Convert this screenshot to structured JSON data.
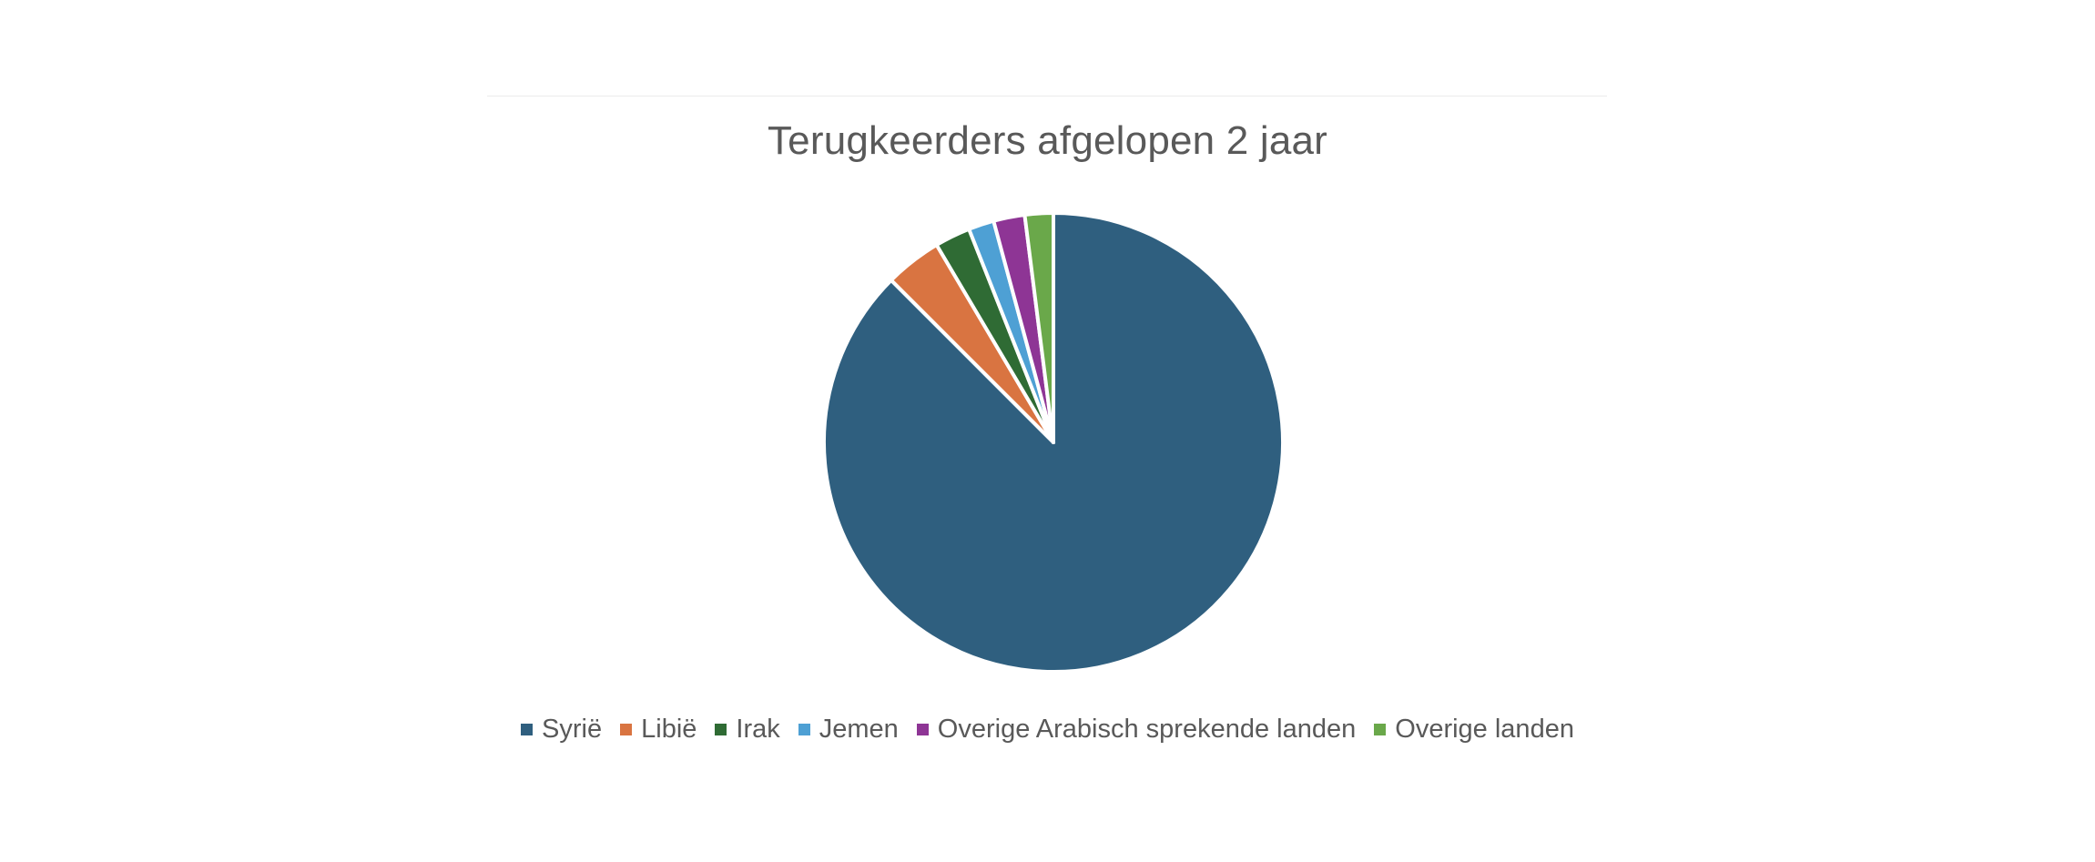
{
  "chart_data": {
    "type": "pie",
    "title": "Terugkeerders afgelopen 2 jaar",
    "categories": [
      "Syrië",
      "Libië",
      "Irak",
      "Jemen",
      "Overige Arabisch sprekende landen",
      "Overige landen"
    ],
    "values": [
      87.5,
      4.0,
      2.5,
      1.8,
      2.2,
      2.0
    ],
    "colors": [
      "#2f5f7f",
      "#d97441",
      "#2f6b34",
      "#4ea0d4",
      "#8e3595",
      "#6aa84a"
    ],
    "legend": "bottom",
    "start_angle_deg": 0,
    "direction": "clockwise"
  }
}
